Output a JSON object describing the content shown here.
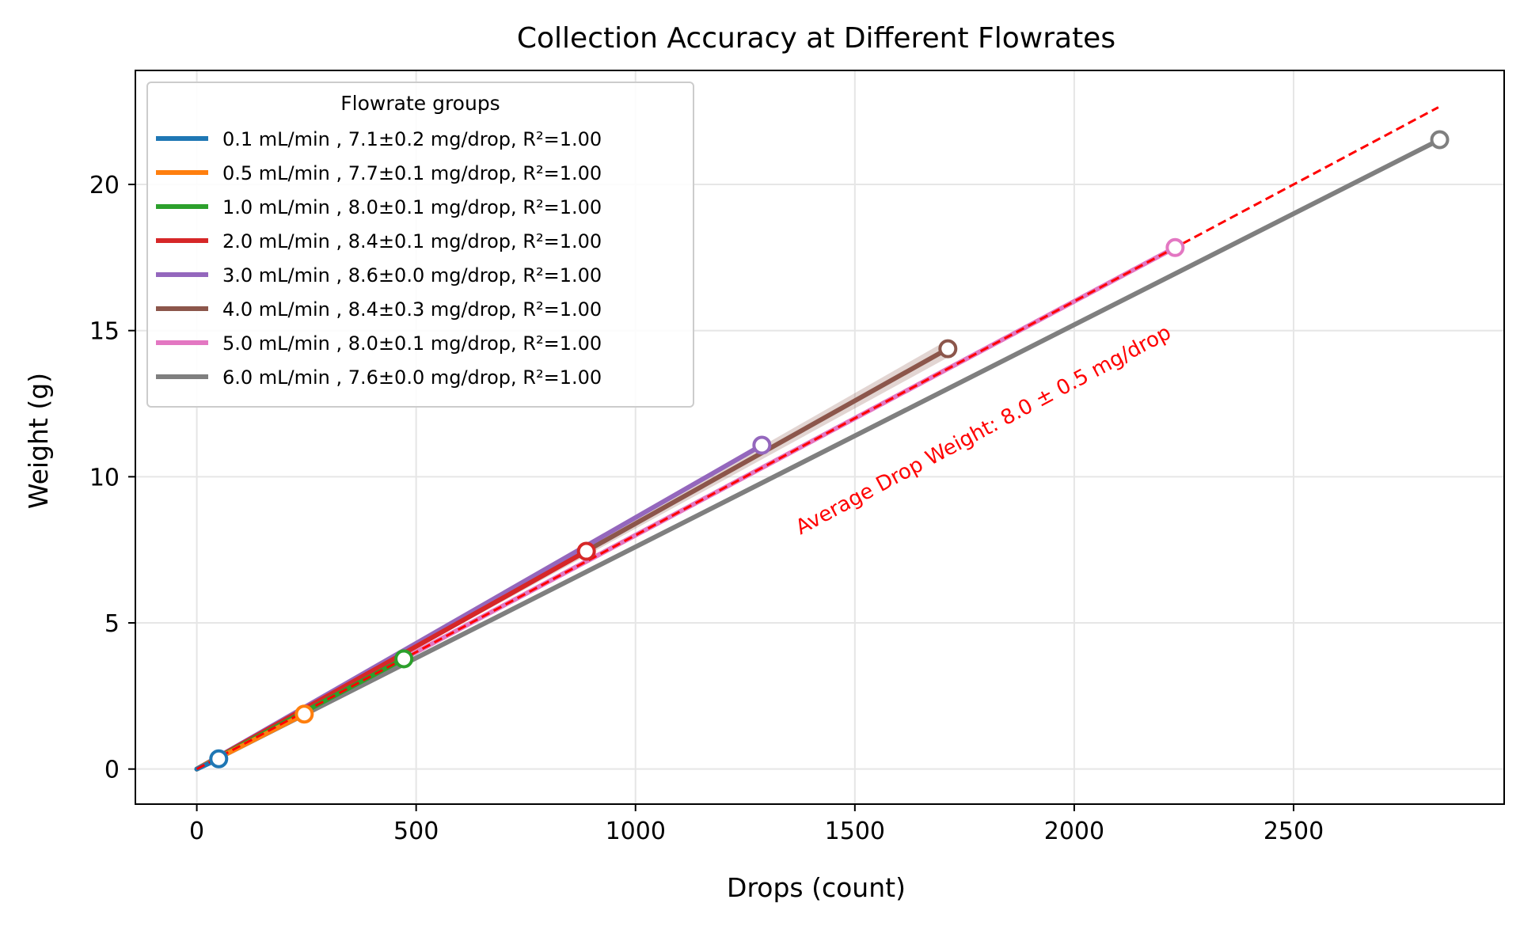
{
  "chart_data": {
    "type": "line",
    "title": "Collection Accuracy at Different Flowrates",
    "xlabel": "Drops (count)",
    "ylabel": "Weight (g)",
    "xlim": [
      -140,
      2980
    ],
    "ylim": [
      -1.2,
      23.9
    ],
    "xticks": [
      0,
      500,
      1000,
      1500,
      2000,
      2500
    ],
    "yticks": [
      0,
      5,
      10,
      15,
      20
    ],
    "xtick_labels": [
      "0",
      "500",
      "1000",
      "1500",
      "2000",
      "2500"
    ],
    "ytick_labels": [
      "0",
      "5",
      "10",
      "15",
      "20"
    ],
    "grid": true,
    "legend": {
      "title": "Flowrate groups",
      "placement": "top-left"
    },
    "series": [
      {
        "name": "0.1 mL/min , 7.1±0.2 mg/drop, R²=1.00",
        "color": "#1f77b4",
        "x": [
          0,
          50
        ],
        "y": [
          0,
          0.35
        ]
      },
      {
        "name": "0.5 mL/min , 7.7±0.1 mg/drop, R²=1.00",
        "color": "#ff7f0e",
        "x": [
          0,
          245
        ],
        "y": [
          0,
          1.88
        ]
      },
      {
        "name": "1.0 mL/min , 8.0±0.1 mg/drop, R²=1.00",
        "color": "#2ca02c",
        "x": [
          0,
          472
        ],
        "y": [
          0,
          3.77
        ]
      },
      {
        "name": "2.0 mL/min , 8.4±0.1 mg/drop, R²=1.00",
        "color": "#d62728",
        "x": [
          0,
          888
        ],
        "y": [
          0,
          7.45
        ]
      },
      {
        "name": "3.0 mL/min , 8.6±0.0 mg/drop, R²=1.00",
        "color": "#9467bd",
        "x": [
          0,
          1288
        ],
        "y": [
          0,
          11.08
        ]
      },
      {
        "name": "4.0 mL/min , 8.4±0.3 mg/drop, R²=1.00",
        "color": "#8c564b",
        "x": [
          0,
          1712
        ],
        "y": [
          0,
          14.38
        ],
        "band": 0.3
      },
      {
        "name": "5.0 mL/min , 8.0±0.1 mg/drop, R²=1.00",
        "color": "#e377c2",
        "x": [
          0,
          2230
        ],
        "y": [
          0,
          17.84
        ]
      },
      {
        "name": "6.0 mL/min , 7.6±0.0 mg/drop, R²=1.00",
        "color": "#7f7f7f",
        "x": [
          0,
          2833
        ],
        "y": [
          0,
          21.53
        ]
      }
    ],
    "reference_line": {
      "color": "#ff0000",
      "style": "dashed",
      "x": [
        0,
        2830
      ],
      "y": [
        0,
        22.64
      ]
    },
    "annotation": {
      "text": "Average Drop Weight: 8.0 ± 0.5 mg/drop",
      "color": "#ff0000",
      "x": 1800,
      "y": 11.4
    }
  }
}
